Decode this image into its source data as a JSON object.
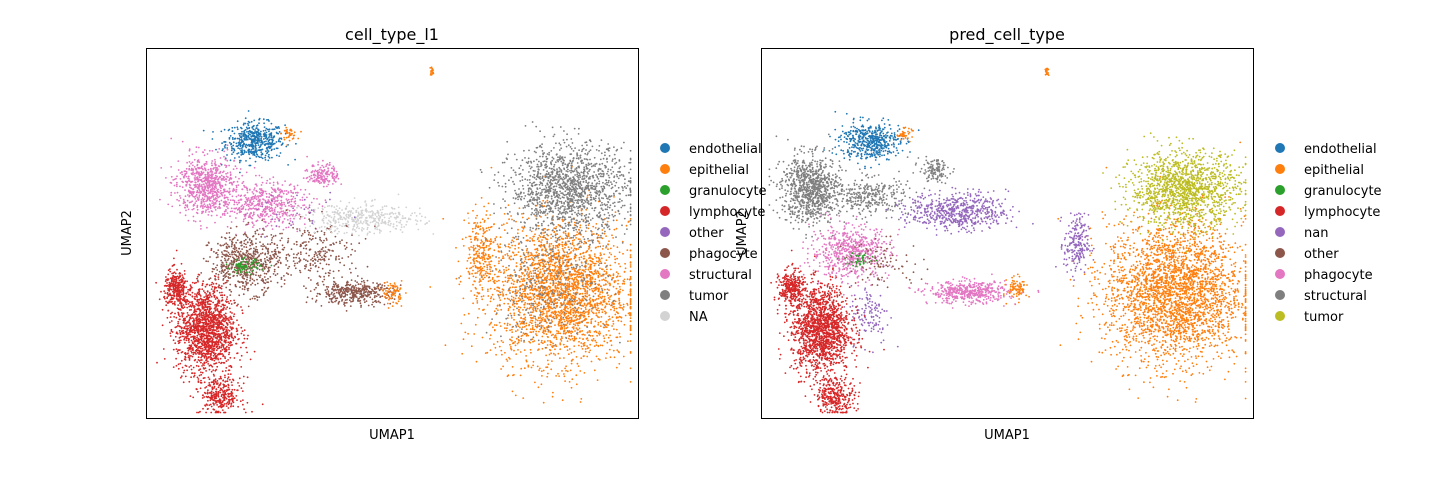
{
  "chart_data": [
    {
      "type": "scatter",
      "title": "cell_type_l1",
      "xlabel": "UMAP1",
      "ylabel": "UMAP2",
      "grid": false,
      "legend_placement": "right-outside",
      "legend": [
        {
          "label": "endothelial",
          "color": "#1f77b4"
        },
        {
          "label": "epithelial",
          "color": "#ff7f0e"
        },
        {
          "label": "granulocyte",
          "color": "#2ca02c"
        },
        {
          "label": "lymphocyte",
          "color": "#d62728"
        },
        {
          "label": "other",
          "color": "#9467bd"
        },
        {
          "label": "phagocyte",
          "color": "#8c564b"
        },
        {
          "label": "structural",
          "color": "#e377c2"
        },
        {
          "label": "tumor",
          "color": "#7f7f7f"
        },
        {
          "label": "NA",
          "color": "#d3d3d3"
        }
      ],
      "clusters": [
        {
          "series": "endothelial",
          "cx": 0.22,
          "cy": 0.75,
          "rx": 0.06,
          "ry": 0.05,
          "n": 500
        },
        {
          "series": "epithelial",
          "cx": 0.29,
          "cy": 0.77,
          "rx": 0.015,
          "ry": 0.015,
          "n": 40
        },
        {
          "series": "epithelial",
          "cx": 0.58,
          "cy": 0.94,
          "rx": 0.004,
          "ry": 0.012,
          "n": 20
        },
        {
          "series": "epithelial",
          "cx": 0.84,
          "cy": 0.34,
          "rx": 0.14,
          "ry": 0.19,
          "n": 2600
        },
        {
          "series": "epithelial",
          "cx": 0.68,
          "cy": 0.44,
          "rx": 0.03,
          "ry": 0.12,
          "n": 250
        },
        {
          "series": "tumor",
          "cx": 0.86,
          "cy": 0.62,
          "rx": 0.12,
          "ry": 0.12,
          "n": 1400
        },
        {
          "series": "tumor",
          "cx": 0.82,
          "cy": 0.36,
          "rx": 0.12,
          "ry": 0.15,
          "n": 300
        },
        {
          "series": "structural",
          "cx": 0.12,
          "cy": 0.63,
          "rx": 0.06,
          "ry": 0.08,
          "n": 700
        },
        {
          "series": "structural",
          "cx": 0.24,
          "cy": 0.58,
          "rx": 0.09,
          "ry": 0.06,
          "n": 500
        },
        {
          "series": "structural",
          "cx": 0.36,
          "cy": 0.66,
          "rx": 0.03,
          "ry": 0.03,
          "n": 160
        },
        {
          "series": "lymphocyte",
          "cx": 0.12,
          "cy": 0.24,
          "rx": 0.06,
          "ry": 0.12,
          "n": 1500
        },
        {
          "series": "lymphocyte",
          "cx": 0.06,
          "cy": 0.35,
          "rx": 0.025,
          "ry": 0.05,
          "n": 300
        },
        {
          "series": "lymphocyte",
          "cx": 0.15,
          "cy": 0.06,
          "rx": 0.04,
          "ry": 0.05,
          "n": 300
        },
        {
          "series": "phagocyte",
          "cx": 0.2,
          "cy": 0.42,
          "rx": 0.07,
          "ry": 0.08,
          "n": 600
        },
        {
          "series": "phagocyte",
          "cx": 0.42,
          "cy": 0.34,
          "rx": 0.08,
          "ry": 0.03,
          "n": 400
        },
        {
          "series": "phagocyte",
          "cx": 0.34,
          "cy": 0.45,
          "rx": 0.1,
          "ry": 0.08,
          "n": 250
        },
        {
          "series": "epithelial",
          "cx": 0.5,
          "cy": 0.34,
          "rx": 0.02,
          "ry": 0.03,
          "n": 80
        },
        {
          "series": "granulocyte",
          "cx": 0.2,
          "cy": 0.41,
          "rx": 0.03,
          "ry": 0.02,
          "n": 80
        },
        {
          "series": "NA",
          "cx": 0.44,
          "cy": 0.54,
          "rx": 0.12,
          "ry": 0.04,
          "n": 400
        },
        {
          "series": "other",
          "cx": 0.3,
          "cy": 0.55,
          "rx": 0.1,
          "ry": 0.05,
          "n": 30
        }
      ]
    },
    {
      "type": "scatter",
      "title": "pred_cell_type",
      "xlabel": "UMAP1",
      "ylabel": "UMAP2",
      "grid": false,
      "legend_placement": "right-outside",
      "legend": [
        {
          "label": "endothelial",
          "color": "#1f77b4"
        },
        {
          "label": "epithelial",
          "color": "#ff7f0e"
        },
        {
          "label": "granulocyte",
          "color": "#2ca02c"
        },
        {
          "label": "lymphocyte",
          "color": "#d62728"
        },
        {
          "label": "nan",
          "color": "#9467bd"
        },
        {
          "label": "other",
          "color": "#8c564b"
        },
        {
          "label": "phagocyte",
          "color": "#e377c2"
        },
        {
          "label": "structural",
          "color": "#7f7f7f"
        },
        {
          "label": "tumor",
          "color": "#bcbd22"
        }
      ],
      "clusters": [
        {
          "series": "endothelial",
          "cx": 0.22,
          "cy": 0.75,
          "rx": 0.06,
          "ry": 0.05,
          "n": 500
        },
        {
          "series": "epithelial",
          "cx": 0.29,
          "cy": 0.77,
          "rx": 0.015,
          "ry": 0.015,
          "n": 40
        },
        {
          "series": "epithelial",
          "cx": 0.58,
          "cy": 0.94,
          "rx": 0.004,
          "ry": 0.012,
          "n": 20
        },
        {
          "series": "epithelial",
          "cx": 0.84,
          "cy": 0.34,
          "rx": 0.14,
          "ry": 0.19,
          "n": 2800
        },
        {
          "series": "epithelial",
          "cx": 0.52,
          "cy": 0.35,
          "rx": 0.02,
          "ry": 0.03,
          "n": 90
        },
        {
          "series": "tumor",
          "cx": 0.86,
          "cy": 0.62,
          "rx": 0.11,
          "ry": 0.1,
          "n": 1400
        },
        {
          "series": "structural",
          "cx": 0.1,
          "cy": 0.62,
          "rx": 0.06,
          "ry": 0.09,
          "n": 900
        },
        {
          "series": "structural",
          "cx": 0.22,
          "cy": 0.6,
          "rx": 0.08,
          "ry": 0.05,
          "n": 300
        },
        {
          "series": "structural",
          "cx": 0.35,
          "cy": 0.67,
          "rx": 0.03,
          "ry": 0.03,
          "n": 120
        },
        {
          "series": "nan",
          "cx": 0.4,
          "cy": 0.56,
          "rx": 0.1,
          "ry": 0.05,
          "n": 600
        },
        {
          "series": "nan",
          "cx": 0.64,
          "cy": 0.47,
          "rx": 0.025,
          "ry": 0.08,
          "n": 200
        },
        {
          "series": "nan",
          "cx": 0.22,
          "cy": 0.28,
          "rx": 0.04,
          "ry": 0.08,
          "n": 120
        },
        {
          "series": "lymphocyte",
          "cx": 0.12,
          "cy": 0.24,
          "rx": 0.06,
          "ry": 0.12,
          "n": 1500
        },
        {
          "series": "lymphocyte",
          "cx": 0.06,
          "cy": 0.35,
          "rx": 0.025,
          "ry": 0.05,
          "n": 300
        },
        {
          "series": "lymphocyte",
          "cx": 0.15,
          "cy": 0.06,
          "rx": 0.04,
          "ry": 0.05,
          "n": 300
        },
        {
          "series": "phagocyte",
          "cx": 0.18,
          "cy": 0.45,
          "rx": 0.08,
          "ry": 0.07,
          "n": 600
        },
        {
          "series": "phagocyte",
          "cx": 0.42,
          "cy": 0.34,
          "rx": 0.08,
          "ry": 0.03,
          "n": 450
        },
        {
          "series": "other",
          "cx": 0.25,
          "cy": 0.42,
          "rx": 0.08,
          "ry": 0.06,
          "n": 80
        },
        {
          "series": "granulocyte",
          "cx": 0.2,
          "cy": 0.43,
          "rx": 0.03,
          "ry": 0.02,
          "n": 40
        }
      ]
    }
  ]
}
